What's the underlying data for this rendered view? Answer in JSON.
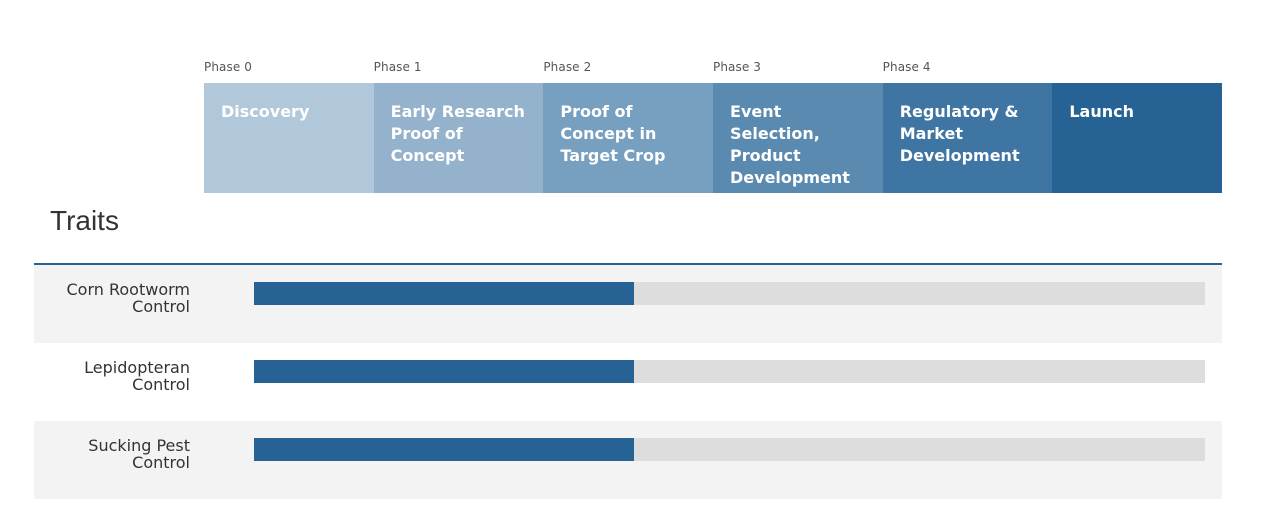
{
  "chart_data": {
    "type": "bar",
    "orientation": "horizontal",
    "title": "Traits",
    "phase_labels": [
      "Phase 0",
      "Phase 1",
      "Phase 2",
      "Phase 3",
      "Phase 4",
      ""
    ],
    "stages": [
      {
        "name": "Discovery",
        "color": "#b1c8da"
      },
      {
        "name": "Early Research Proof of Concept",
        "color": "#94b2cb"
      },
      {
        "name": "Proof of Concept in Target Crop",
        "color": "#779fbf"
      },
      {
        "name": "Event Selection, Product Development",
        "color": "#5b8ab0"
      },
      {
        "name": "Regulatory & Market Development",
        "color": "#3f75a2"
      },
      {
        "name": "Launch",
        "color": "#266294"
      }
    ],
    "categories": [
      "Corn Rootworm Control",
      "Lepidopteran Control",
      "Sucking Pest Control"
    ],
    "values": [
      2.4,
      2.4,
      2.4
    ],
    "xlim": [
      0,
      6
    ],
    "bar_color": "#266294",
    "track_color": "#dddddd"
  }
}
